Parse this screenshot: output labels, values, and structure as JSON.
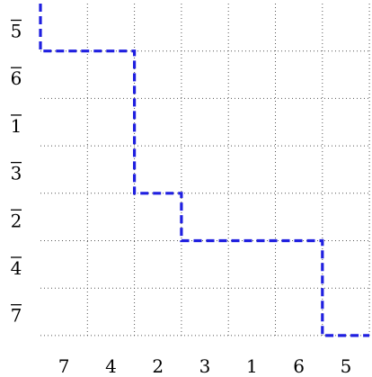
{
  "diagram": {
    "row_labels": [
      "5",
      "6",
      "1",
      "3",
      "2",
      "4",
      "7"
    ],
    "row_labels_overlined": true,
    "column_labels": [
      "7",
      "4",
      "2",
      "3",
      "1",
      "6",
      "5"
    ],
    "path_color": "#1f1fe0",
    "path_style": "dashed",
    "grid_style": "dotted",
    "path_corners": [
      [
        0,
        0.0
      ],
      [
        0,
        1.0
      ],
      [
        2,
        1.0
      ],
      [
        2,
        4.0
      ],
      [
        3,
        4.0
      ],
      [
        3,
        5.0
      ],
      [
        6,
        5.0
      ],
      [
        6,
        7.0
      ],
      [
        7,
        7.0
      ]
    ]
  }
}
